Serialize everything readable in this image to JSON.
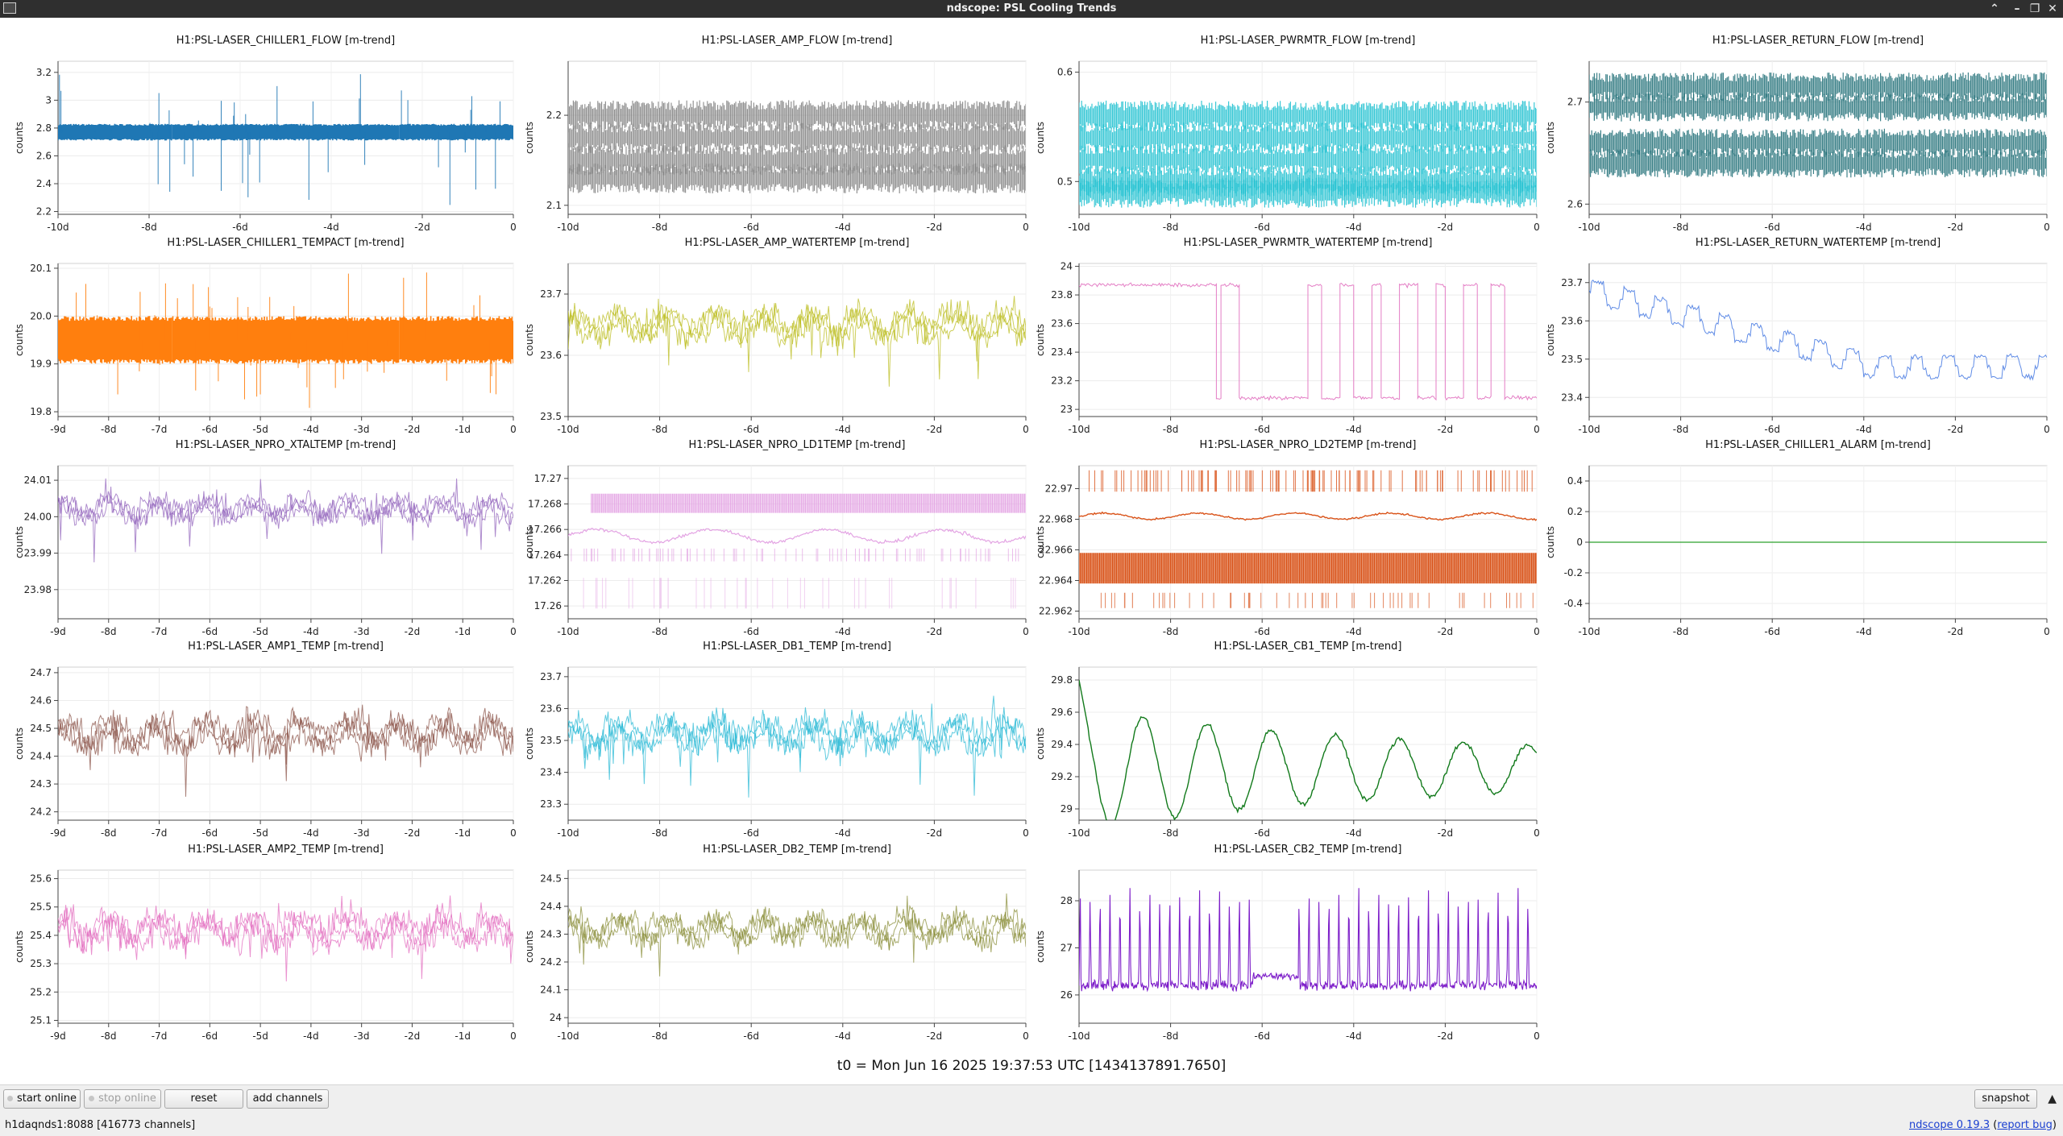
{
  "window": {
    "title": "ndscope: PSL Cooling Trends"
  },
  "plots": [
    {
      "title": "H1:PSL-LASER_CHILLER1_FLOW [m-trend]",
      "ylabel": "counts",
      "color": "#1f77b4",
      "ylim": [
        2.18,
        3.28
      ],
      "yticks": [
        "3.2",
        "3",
        "2.8",
        "2.6",
        "2.4",
        "2.2"
      ],
      "ytick_values": [
        3.2,
        3.0,
        2.8,
        2.6,
        2.4,
        2.2
      ],
      "xticks": [
        "-10d",
        "-8d",
        "-6d",
        "-4d",
        "-2d",
        "0"
      ],
      "trace": {
        "style": "band_spikes",
        "center": 2.77,
        "half_width": 0.06,
        "spike_hi": 3.2,
        "spike_lo": 2.2
      }
    },
    {
      "title": "H1:PSL-LASER_AMP_FLOW [m-trend]",
      "ylabel": "counts",
      "color": "#7f7f7f",
      "ylim": [
        2.09,
        2.26
      ],
      "yticks": [
        "2.2",
        "2.1"
      ],
      "ytick_values": [
        2.2,
        2.1
      ],
      "xticks": [
        "-10d",
        "-8d",
        "-6d",
        "-4d",
        "-2d",
        "0"
      ],
      "trace": {
        "style": "multi_band",
        "levels": [
          2.2,
          2.175,
          2.15,
          2.13
        ],
        "half_width": 0.012
      }
    },
    {
      "title": "H1:PSL-LASER_PWRMTR_FLOW [m-trend]",
      "ylabel": "counts",
      "color": "#17becf",
      "ylim": [
        0.47,
        0.61
      ],
      "yticks": [
        "0.6",
        "0.5"
      ],
      "ytick_values": [
        0.6,
        0.5
      ],
      "xticks": [
        "-10d",
        "-8d",
        "-6d",
        "-4d",
        "-2d",
        "0"
      ],
      "trace": {
        "style": "multi_band",
        "levels": [
          0.56,
          0.54,
          0.52,
          0.5,
          0.49
        ],
        "half_width": 0.01
      }
    },
    {
      "title": "H1:PSL-LASER_RETURN_FLOW [m-trend]",
      "ylabel": "counts",
      "color": "#1a6b73",
      "ylim": [
        2.59,
        2.74
      ],
      "yticks": [
        "2.7",
        "2.6"
      ],
      "ytick_values": [
        2.7,
        2.6
      ],
      "xticks": [
        "-10d",
        "-8d",
        "-6d",
        "-4d",
        "-2d",
        "0"
      ],
      "trace": {
        "style": "multi_band",
        "levels": [
          2.715,
          2.695,
          2.66,
          2.64
        ],
        "half_width": 0.01
      }
    },
    {
      "title": "H1:PSL-LASER_CHILLER1_TEMPACT [m-trend]",
      "ylabel": "counts",
      "color": "#ff7f0e",
      "ylim": [
        19.79,
        20.11
      ],
      "yticks": [
        "20.1",
        "20.0",
        "19.9",
        "19.8"
      ],
      "ytick_values": [
        20.1,
        20.0,
        19.9,
        19.8
      ],
      "xticks": [
        "-9d",
        "-8d",
        "-7d",
        "-6d",
        "-5d",
        "-4d",
        "-3d",
        "-2d",
        "-1d",
        "0"
      ],
      "trace": {
        "style": "band_spikes",
        "center": 19.95,
        "half_width": 0.05,
        "spike_hi": 20.1,
        "spike_lo": 19.8
      }
    },
    {
      "title": "H1:PSL-LASER_AMP_WATERTEMP [m-trend]",
      "ylabel": "counts",
      "color": "#bcbd22",
      "ylim": [
        23.5,
        23.75
      ],
      "yticks": [
        "23.7",
        "23.6",
        "23.5"
      ],
      "ytick_values": [
        23.7,
        23.6,
        23.5
      ],
      "xticks": [
        "-10d",
        "-8d",
        "-6d",
        "-4d",
        "-2d",
        "0"
      ],
      "trace": {
        "style": "noise",
        "center": 23.65,
        "amp": 0.03,
        "drops": 0.08
      }
    },
    {
      "title": "H1:PSL-LASER_PWRMTR_WATERTEMP [m-trend]",
      "ylabel": "counts",
      "color": "#e377c2",
      "ylim": [
        22.95,
        24.02
      ],
      "yticks": [
        "24",
        "23.8",
        "23.6",
        "23.4",
        "23.2",
        "23"
      ],
      "ytick_values": [
        24.0,
        23.8,
        23.6,
        23.4,
        23.2,
        23.0
      ],
      "xticks": [
        "-10d",
        "-8d",
        "-6d",
        "-4d",
        "-2d",
        "0"
      ],
      "trace": {
        "style": "square",
        "hi": 23.87,
        "lo": 23.08
      }
    },
    {
      "title": "H1:PSL-LASER_RETURN_WATERTEMP [m-trend]",
      "ylabel": "counts",
      "color": "#4f7fe3",
      "ylim": [
        23.35,
        23.75
      ],
      "yticks": [
        "23.7",
        "23.6",
        "23.5",
        "23.4"
      ],
      "ytick_values": [
        23.7,
        23.6,
        23.5,
        23.4
      ],
      "xticks": [
        "-10d",
        "-8d",
        "-6d",
        "-4d",
        "-2d",
        "0"
      ],
      "trace": {
        "style": "steps_down",
        "start": 23.68,
        "end": 23.48,
        "amp": 0.04
      }
    },
    {
      "title": "H1:PSL-LASER_NPRO_XTALTEMP [m-trend]",
      "ylabel": "counts",
      "color": "#9467bd",
      "ylim": [
        23.972,
        24.014
      ],
      "yticks": [
        "24.01",
        "24.00",
        "23.99",
        "23.98"
      ],
      "ytick_values": [
        24.01,
        24.0,
        23.99,
        23.98
      ],
      "xticks": [
        "-9d",
        "-8d",
        "-7d",
        "-6d",
        "-5d",
        "-4d",
        "-3d",
        "-2d",
        "-1d",
        "0"
      ],
      "trace": {
        "style": "noise",
        "center": 24.002,
        "amp": 0.004,
        "drops": 0.012
      }
    },
    {
      "title": "H1:PSL-LASER_NPRO_LD1TEMP [m-trend]",
      "ylabel": "counts",
      "color": "#e3a3e3",
      "ylim": [
        17.259,
        17.271
      ],
      "yticks": [
        "17.27",
        "17.268",
        "17.266",
        "17.264",
        "17.262",
        "17.26"
      ],
      "ytick_values": [
        17.27,
        17.268,
        17.266,
        17.264,
        17.262,
        17.26
      ],
      "xticks": [
        "-10d",
        "-8d",
        "-6d",
        "-4d",
        "-2d",
        "0"
      ],
      "trace": {
        "style": "ld1"
      }
    },
    {
      "title": "H1:PSL-LASER_NPRO_LD2TEMP [m-trend]",
      "ylabel": "counts",
      "color": "#d95319",
      "ylim": [
        22.9615,
        22.9715
      ],
      "yticks": [
        "22.97",
        "22.968",
        "22.966",
        "22.964",
        "22.962"
      ],
      "ytick_values": [
        22.97,
        22.968,
        22.966,
        22.964,
        22.962
      ],
      "xticks": [
        "-10d",
        "-8d",
        "-6d",
        "-4d",
        "-2d",
        "0"
      ],
      "trace": {
        "style": "ld2"
      }
    },
    {
      "title": "H1:PSL-LASER_CHILLER1_ALARM [m-trend]",
      "ylabel": "counts",
      "color": "#2ca02c",
      "ylim": [
        -0.5,
        0.5
      ],
      "yticks": [
        "0.4",
        "0.2",
        "0",
        "-0.2",
        "-0.4"
      ],
      "ytick_values": [
        0.4,
        0.2,
        0,
        -0.2,
        -0.4
      ],
      "xticks": [
        "-10d",
        "-8d",
        "-6d",
        "-4d",
        "-2d",
        "0"
      ],
      "trace": {
        "style": "flat",
        "value": 0
      }
    },
    {
      "title": "H1:PSL-LASER_AMP1_TEMP [m-trend]",
      "ylabel": "counts",
      "color": "#8c564b",
      "ylim": [
        24.17,
        24.72
      ],
      "yticks": [
        "24.7",
        "24.6",
        "24.5",
        "24.4",
        "24.3",
        "24.2"
      ],
      "ytick_values": [
        24.7,
        24.6,
        24.5,
        24.4,
        24.3,
        24.2
      ],
      "xticks": [
        "-9d",
        "-8d",
        "-7d",
        "-6d",
        "-5d",
        "-4d",
        "-3d",
        "-2d",
        "-1d",
        "0"
      ],
      "trace": {
        "style": "noise",
        "center": 24.48,
        "amp": 0.07,
        "drops": 0.15
      }
    },
    {
      "title": "H1:PSL-LASER_DB1_TEMP [m-trend]",
      "ylabel": "counts",
      "color": "#2bbad6",
      "ylim": [
        23.25,
        23.73
      ],
      "yticks": [
        "23.7",
        "23.6",
        "23.5",
        "23.4",
        "23.3"
      ],
      "ytick_values": [
        23.7,
        23.6,
        23.5,
        23.4,
        23.3
      ],
      "xticks": [
        "-10d",
        "-8d",
        "-6d",
        "-4d",
        "-2d",
        "0"
      ],
      "trace": {
        "style": "noise",
        "center": 23.52,
        "amp": 0.06,
        "drops": 0.15
      }
    },
    {
      "title": "H1:PSL-LASER_CB1_TEMP [m-trend]",
      "ylabel": "counts",
      "color": "#127a1b",
      "ylim": [
        28.93,
        29.88
      ],
      "yticks": [
        "29.8",
        "29.6",
        "29.4",
        "29.2",
        "29"
      ],
      "ytick_values": [
        29.8,
        29.6,
        29.4,
        29.2,
        29.0
      ],
      "xticks": [
        "-10d",
        "-8d",
        "-6d",
        "-4d",
        "-2d",
        "0"
      ],
      "trace": {
        "style": "osc",
        "base": 29.25,
        "amp": 0.3,
        "period": 1.4,
        "decay": 0.15
      }
    },
    {
      "title": "",
      "ylabel": "",
      "color": "",
      "hidden": true
    },
    {
      "title": "H1:PSL-LASER_AMP2_TEMP [m-trend]",
      "ylabel": "counts",
      "color": "#e36fc0",
      "ylim": [
        25.09,
        25.63
      ],
      "yticks": [
        "25.6",
        "25.5",
        "25.4",
        "25.3",
        "25.2",
        "25.1"
      ],
      "ytick_values": [
        25.6,
        25.5,
        25.4,
        25.3,
        25.2,
        25.1
      ],
      "xticks": [
        "-9d",
        "-8d",
        "-7d",
        "-6d",
        "-5d",
        "-4d",
        "-3d",
        "-2d",
        "-1d",
        "0"
      ],
      "trace": {
        "style": "noise",
        "center": 25.42,
        "amp": 0.07,
        "drops": 0.15
      }
    },
    {
      "title": "H1:PSL-LASER_DB2_TEMP [m-trend]",
      "ylabel": "counts",
      "color": "#8b8f3b",
      "ylim": [
        23.98,
        24.53
      ],
      "yticks": [
        "24.5",
        "24.4",
        "24.3",
        "24.2",
        "24.1",
        "24"
      ],
      "ytick_values": [
        24.5,
        24.4,
        24.3,
        24.2,
        24.1,
        24.0
      ],
      "xticks": [
        "-10d",
        "-8d",
        "-6d",
        "-4d",
        "-2d",
        "0"
      ],
      "trace": {
        "style": "noise",
        "center": 24.32,
        "amp": 0.06,
        "drops": 0.15
      }
    },
    {
      "title": "H1:PSL-LASER_CB2_TEMP [m-trend]",
      "ylabel": "counts",
      "color": "#7d1ec9",
      "ylim": [
        25.4,
        28.65
      ],
      "yticks": [
        "28",
        "27",
        "26"
      ],
      "ytick_values": [
        28,
        27,
        26
      ],
      "xticks": [
        "-10d",
        "-8d",
        "-6d",
        "-4d",
        "-2d",
        "0"
      ],
      "trace": {
        "style": "spikes_up",
        "base": 26.2,
        "peak": 28.3,
        "count": 46
      }
    },
    {
      "title": "",
      "ylabel": "",
      "color": "",
      "hidden": true
    }
  ],
  "t0_text": "t0 = Mon Jun 16 2025 19:37:53 UTC [1434137891.7650]",
  "buttons": {
    "start_online": "start online",
    "stop_online": "stop online",
    "reset": "reset",
    "add_channels": "add channels",
    "snapshot": "snapshot"
  },
  "status": "h1daqnds1:8088  [416773 channels]",
  "version": {
    "link": "ndscope 0.19.3",
    "report": "report bug"
  }
}
